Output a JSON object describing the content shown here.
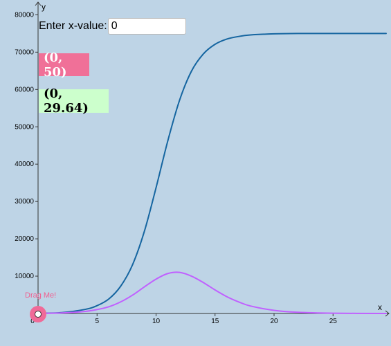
{
  "input": {
    "label": "Enter x-value:",
    "value": "0"
  },
  "points": [
    {
      "text": "(0, 50)"
    },
    {
      "text": "(0, 29.64)"
    }
  ],
  "drag": {
    "label": "Drag Me!",
    "x_value": 0
  },
  "colors": {
    "background": "#bed4e6",
    "curve1": "#1565a0",
    "curve2": "#c060ff",
    "point1_bg": "#f07098",
    "point2_bg": "#ccffcc",
    "drag_handle": "#f06a98"
  },
  "chart_data": {
    "type": "line",
    "xlabel": "x",
    "ylabel": "y",
    "xlim": [
      0,
      29.5
    ],
    "ylim": [
      0,
      81000
    ],
    "x_ticks": [
      "0",
      "5",
      "10",
      "15",
      "20",
      "25"
    ],
    "y_ticks": [
      "10000",
      "20000",
      "30000",
      "40000",
      "50000",
      "60000",
      "70000",
      "80000"
    ],
    "grid": false,
    "series": [
      {
        "x": [
          0,
          2,
          4,
          5,
          6,
          7,
          8,
          9,
          10,
          11,
          12,
          13,
          14,
          15,
          16,
          17,
          18,
          20,
          22,
          25,
          29.5
        ],
        "y": [
          50,
          240,
          1100,
          2100,
          3900,
          7300,
          13000,
          21900,
          33700,
          46300,
          57200,
          64900,
          69500,
          72100,
          73500,
          74200,
          74600,
          74900,
          75000,
          75000,
          75000
        ]
      },
      {
        "x": [
          0,
          2,
          4,
          5,
          6,
          7,
          8,
          9,
          10,
          11,
          12,
          13,
          14,
          15,
          16,
          17,
          18,
          20,
          22,
          25,
          29.5
        ],
        "y": [
          29.64,
          130,
          560,
          1050,
          1800,
          3100,
          4900,
          7100,
          9200,
          10700,
          11000,
          10000,
          8300,
          6300,
          4500,
          3100,
          2000,
          840,
          320,
          70,
          5
        ]
      }
    ]
  }
}
